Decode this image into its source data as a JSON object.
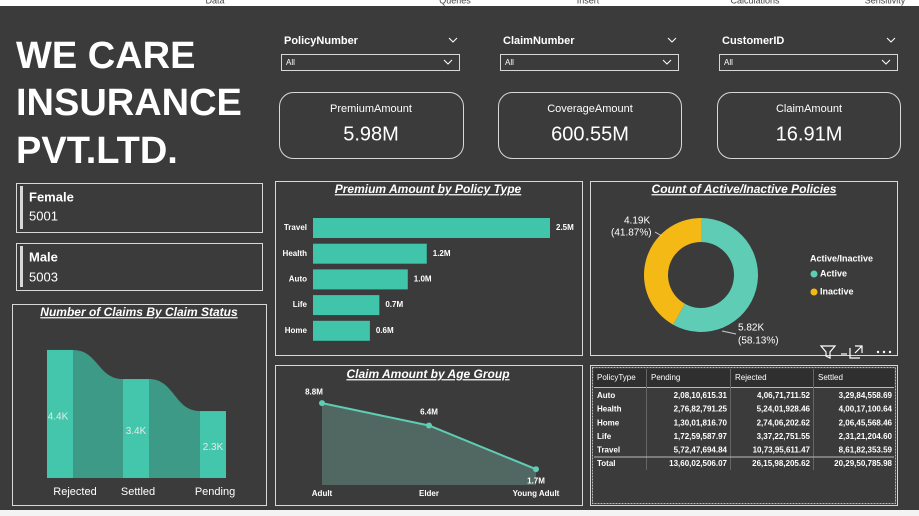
{
  "ribbon_tabs": [
    "Data",
    "Queries",
    "Insert",
    "Calculations",
    "Sensitivity"
  ],
  "header": {
    "title_lines": [
      "WE CARE",
      "INSURANCE",
      "PVT.LTD."
    ]
  },
  "slicers": [
    {
      "label": "PolicyNumber",
      "value": "All"
    },
    {
      "label": "ClaimNumber",
      "value": "All"
    },
    {
      "label": "CustomerID",
      "value": "All"
    }
  ],
  "cards": [
    {
      "label": "PremiumAmount",
      "value": "5.98M"
    },
    {
      "label": "CoverageAmount",
      "value": "600.55M"
    },
    {
      "label": "ClaimAmount",
      "value": "16.91M"
    }
  ],
  "gender_cards": [
    {
      "label": "Female",
      "value": "5001"
    },
    {
      "label": "Male",
      "value": "5003"
    }
  ],
  "chart_data": [
    {
      "type": "bar",
      "orientation": "horizontal",
      "title": "Premium Amount by Policy Type",
      "categories": [
        "Travel",
        "Health",
        "Auto",
        "Life",
        "Home"
      ],
      "values": [
        2.5,
        1.2,
        1.0,
        0.7,
        0.6
      ],
      "value_labels": [
        "2.5M",
        "1.2M",
        "1.0M",
        "0.7M",
        "0.6M"
      ],
      "color": "#40c4aa"
    },
    {
      "type": "ribbon",
      "title": "Number of Claims By Claim Status",
      "categories": [
        "Rejected",
        "Settled",
        "Pending"
      ],
      "values": [
        4.4,
        3.4,
        2.3
      ],
      "value_labels": [
        "4.4K",
        "3.4K",
        "2.3K"
      ],
      "color": "#43c6ac"
    },
    {
      "type": "pie",
      "title": "Count of Active/Inactive Policies",
      "legend_title": "Active/Inactive",
      "categories": [
        "Active",
        "Inactive"
      ],
      "values": [
        5.82,
        4.19
      ],
      "value_labels": [
        "5.82K",
        "4.19K"
      ],
      "percents": [
        58.13,
        41.87
      ],
      "percent_labels": [
        "(58.13%)",
        "(41.87%)"
      ],
      "colors": [
        "#5fcdb5",
        "#f5b915"
      ],
      "legend": "right"
    },
    {
      "type": "area",
      "title": "Claim Amount by Age Group",
      "categories": [
        "Adult",
        "Elder",
        "Young Adult"
      ],
      "values": [
        8.8,
        6.4,
        1.7
      ],
      "value_labels": [
        "8.8M",
        "6.4M",
        "1.7M"
      ],
      "color": "#5fcdb5"
    }
  ],
  "table": {
    "columns": [
      "PolicyType",
      "Pending",
      "Rejected",
      "Settled"
    ],
    "rows": [
      [
        "Auto",
        "2,08,10,615.31",
        "4,06,71,711.52",
        "3,29,84,558.69"
      ],
      [
        "Health",
        "2,76,82,791.25",
        "5,24,01,928.46",
        "4,00,17,100.64"
      ],
      [
        "Home",
        "1,30,01,816.70",
        "2,74,06,202.62",
        "2,06,45,568.46"
      ],
      [
        "Life",
        "1,72,59,587.97",
        "3,37,22,751.55",
        "2,31,21,204.60"
      ],
      [
        "Travel",
        "5,72,47,694.84",
        "10,73,95,611.47",
        "8,61,82,353.59"
      ],
      [
        "Total",
        "13,60,02,506.07",
        "26,15,98,205.62",
        "20,29,50,785.98"
      ]
    ]
  }
}
